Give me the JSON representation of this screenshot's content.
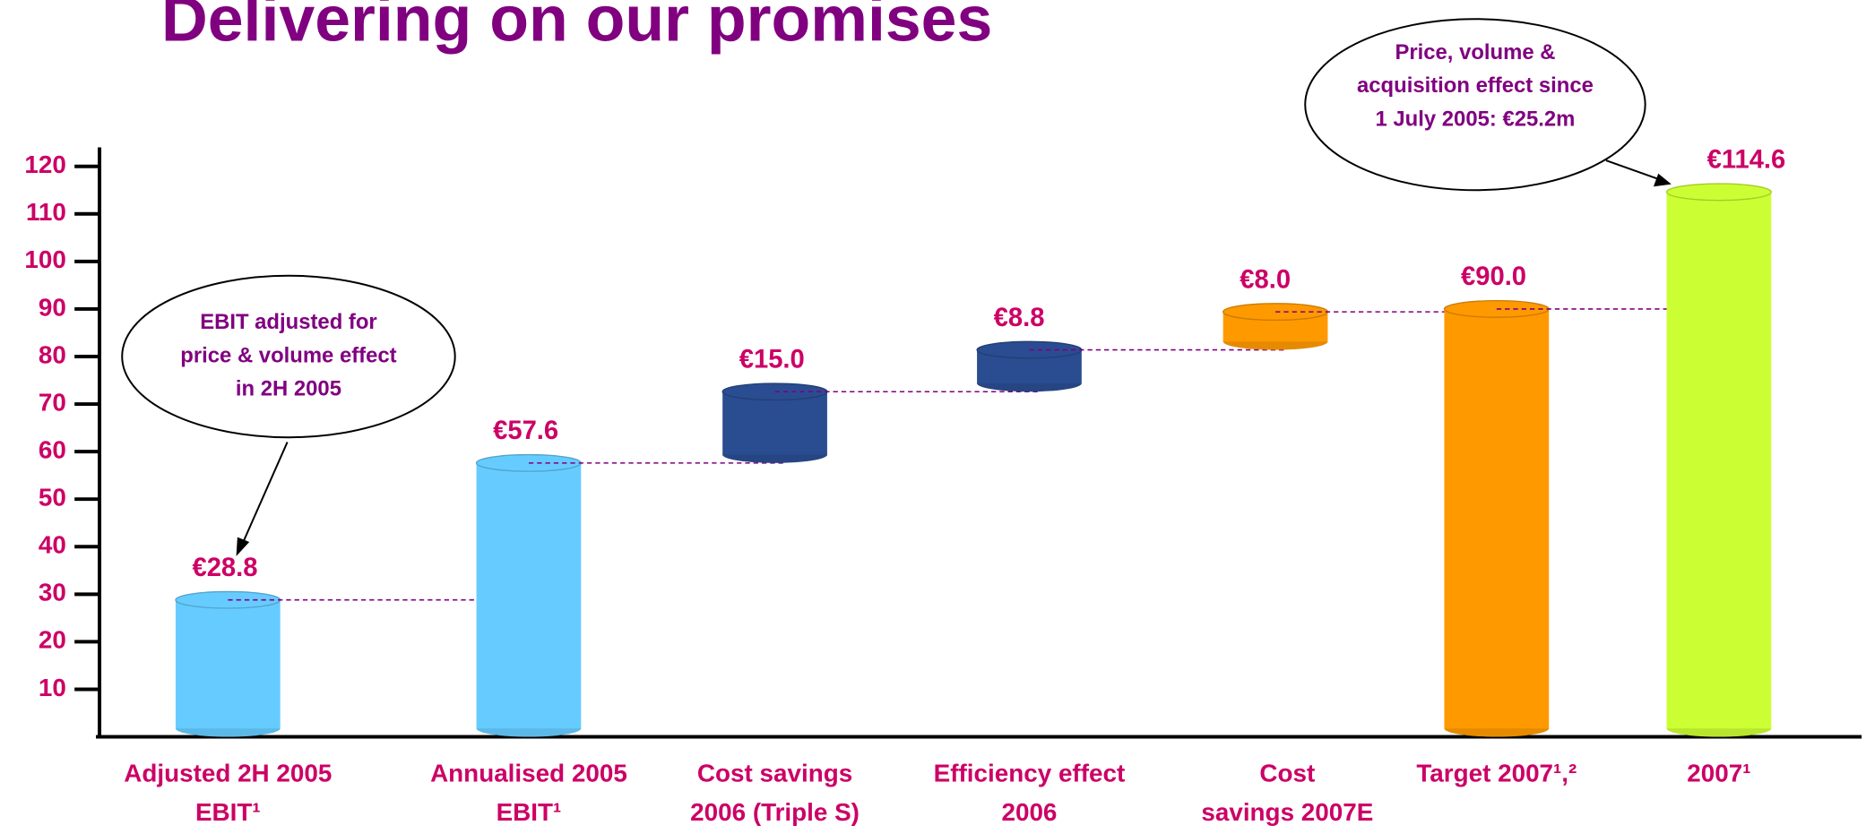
{
  "chart_data": {
    "type": "waterfall",
    "title": "Delivering on our promises",
    "categories": [
      [
        "Adjusted 2H 2005",
        "EBIT¹"
      ],
      [
        "Annualised 2005",
        "EBIT¹"
      ],
      [
        "Cost savings",
        "2006 (Triple S)"
      ],
      [
        "Efficiency effect",
        "2006"
      ],
      [
        "Cost",
        "savings 2007E"
      ],
      [
        "Target 2007¹,²"
      ],
      [
        "2007¹"
      ]
    ],
    "values": [
      28.8,
      57.6,
      15.0,
      8.8,
      8.0,
      90.0,
      114.6
    ],
    "value_labels": [
      "€28.8",
      "€57.6",
      "€15.0",
      "€8.8",
      "€8.0",
      "€90.0",
      "€114.6"
    ],
    "measures": [
      "absolute",
      "absolute",
      "relative",
      "relative",
      "relative",
      "absolute",
      "absolute"
    ],
    "colors": [
      "#66ccff",
      "#66ccff",
      "#2a4d91",
      "#2a4d91",
      "#ff9900",
      "#ff9900",
      "#ccff33"
    ],
    "ylim": [
      0,
      124
    ],
    "yticks": [
      10,
      20,
      30,
      40,
      50,
      60,
      70,
      80,
      90,
      100,
      110,
      120
    ],
    "annotations": [
      [
        "EBIT adjusted for",
        "price & volume effect",
        "in 2H 2005"
      ],
      [
        "Price, volume &",
        "acquisition effect since",
        "1 July 2005: €25.2m"
      ]
    ]
  }
}
